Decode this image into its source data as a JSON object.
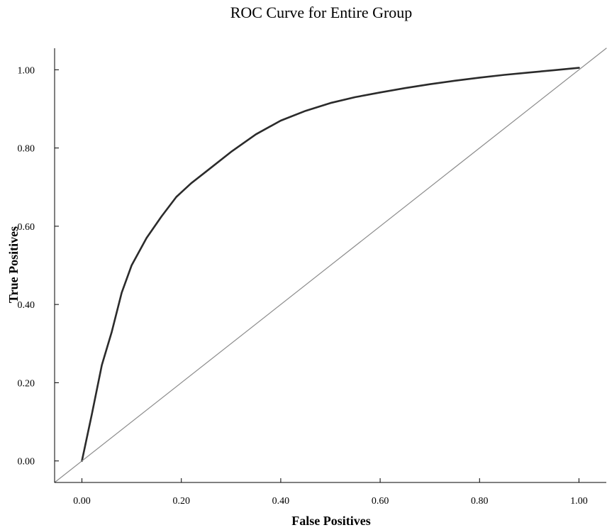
{
  "chart_data": {
    "type": "line",
    "title": "ROC Curve for Entire Group",
    "xlabel": "False Positives",
    "ylabel": "True Positives",
    "xlim": [
      -0.055,
      1.055
    ],
    "ylim": [
      -0.055,
      1.055
    ],
    "x_ticks": [
      "0.00",
      "0.20",
      "0.40",
      "0.60",
      "0.80",
      "1.00"
    ],
    "y_ticks": [
      "0.00",
      "0.20",
      "0.40",
      "0.60",
      "0.80",
      "1.00"
    ],
    "grid": false,
    "legend": "none",
    "series": [
      {
        "role": "roc-curve",
        "color": "#2b2b2b",
        "x": [
          0.0,
          0.02,
          0.04,
          0.06,
          0.08,
          0.1,
          0.13,
          0.16,
          0.19,
          0.22,
          0.25,
          0.3,
          0.35,
          0.4,
          0.45,
          0.5,
          0.55,
          0.6,
          0.65,
          0.7,
          0.75,
          0.8,
          0.85,
          0.9,
          0.95,
          1.0
        ],
        "y": [
          0.0,
          0.12,
          0.245,
          0.33,
          0.43,
          0.5,
          0.57,
          0.625,
          0.675,
          0.71,
          0.74,
          0.79,
          0.835,
          0.87,
          0.895,
          0.915,
          0.93,
          0.942,
          0.953,
          0.963,
          0.972,
          0.98,
          0.987,
          0.993,
          0.999,
          1.005
        ]
      },
      {
        "role": "reference-line",
        "color": "#8c8c8c",
        "x": [
          -0.055,
          1.055
        ],
        "y": [
          -0.055,
          1.055
        ]
      }
    ]
  }
}
